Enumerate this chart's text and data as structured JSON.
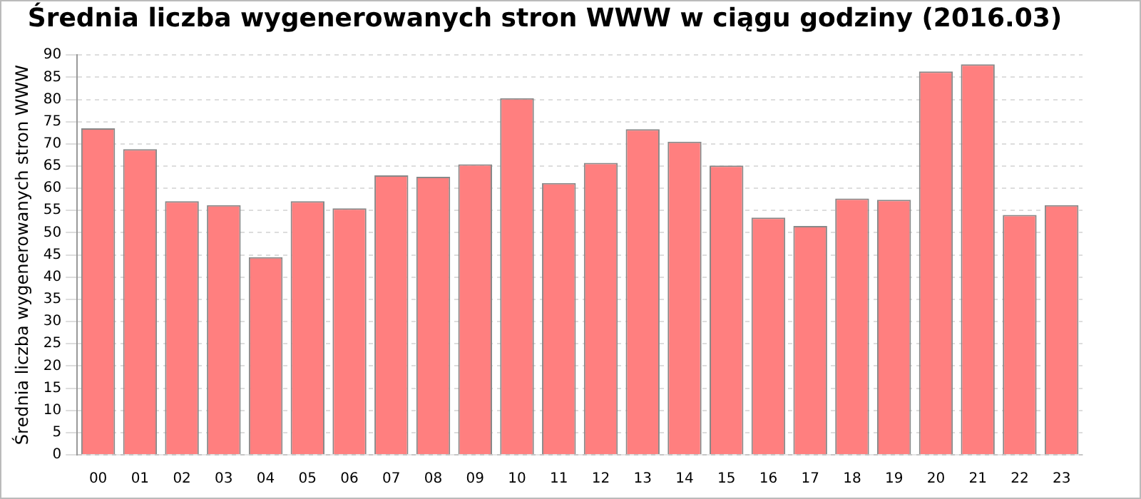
{
  "chart_data": {
    "type": "bar",
    "title": "Średnia liczba wygenerowanych stron WWW w ciągu godziny (2016.03)",
    "ylabel": "Średnia liczba wygenerowanych stron WWW",
    "categories": [
      "00",
      "01",
      "02",
      "03",
      "04",
      "05",
      "06",
      "07",
      "08",
      "09",
      "10",
      "11",
      "12",
      "13",
      "14",
      "15",
      "16",
      "17",
      "18",
      "19",
      "20",
      "21",
      "22",
      "23"
    ],
    "values": [
      73.5,
      68.8,
      57.1,
      56.2,
      44.5,
      57.1,
      55.5,
      62.9,
      62.6,
      65.4,
      80.3,
      61.2,
      65.7,
      73.3,
      70.5,
      65.1,
      53.4,
      51.5,
      57.7,
      57.4,
      86.3,
      87.9,
      54.0,
      56.2
    ],
    "color": "#ff7f7f",
    "ylim": [
      0,
      90
    ],
    "yticks": [
      0,
      5,
      10,
      15,
      20,
      25,
      30,
      35,
      40,
      45,
      50,
      55,
      60,
      65,
      70,
      75,
      80,
      85,
      90
    ],
    "grid": "y",
    "legend": false
  }
}
